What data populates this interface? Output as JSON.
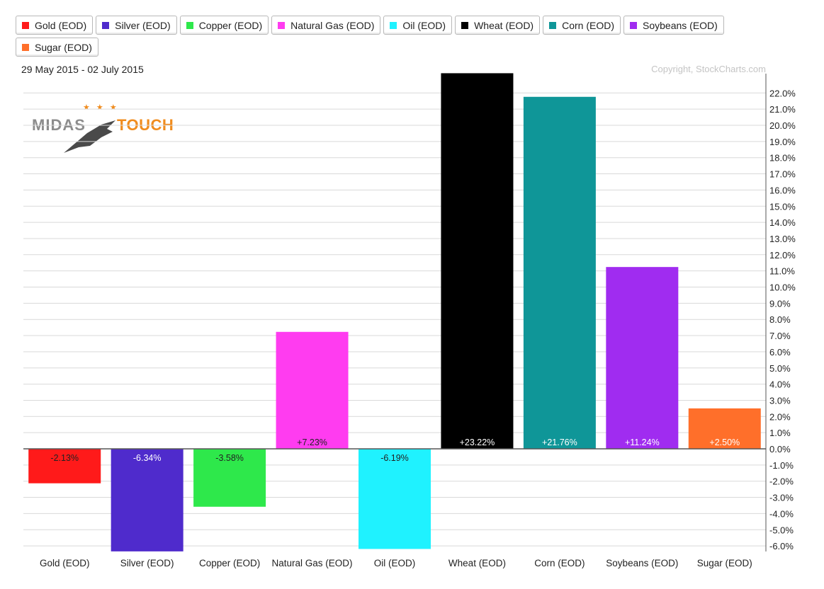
{
  "date_range": "29 May 2015 - 02 July 2015",
  "copyright": "Copyright, StockCharts.com",
  "logo": {
    "word1": "MIDAS",
    "word2": "TOUCH"
  },
  "chart_data": {
    "type": "bar",
    "categories": [
      "Gold (EOD)",
      "Silver (EOD)",
      "Copper (EOD)",
      "Natural Gas (EOD)",
      "Oil (EOD)",
      "Wheat (EOD)",
      "Corn (EOD)",
      "Soybeans (EOD)",
      "Sugar (EOD)"
    ],
    "values": [
      -2.13,
      -6.34,
      -3.58,
      7.23,
      -6.19,
      23.22,
      21.76,
      11.24,
      2.5
    ],
    "value_labels": [
      "-2.13%",
      "-6.34%",
      "-3.58%",
      "+7.23%",
      "-6.19%",
      "+23.22%",
      "+21.76%",
      "+11.24%",
      "+2.50%"
    ],
    "colors": [
      "#ff1a1a",
      "#4f2bcc",
      "#2ee84b",
      "#ff3cf0",
      "#1ff2ff",
      "#000000",
      "#0f9698",
      "#a02cf0",
      "#ff6f2a"
    ],
    "label_colors": [
      "#222222",
      "#ffffff",
      "#222222",
      "#222222",
      "#222222",
      "#ffffff",
      "#ffffff",
      "#ffffff",
      "#ffffff"
    ],
    "ylim": [
      -6.5,
      23
    ],
    "yticks": [
      "22.0%",
      "21.0%",
      "20.0%",
      "19.0%",
      "18.0%",
      "17.0%",
      "16.0%",
      "15.0%",
      "14.0%",
      "13.0%",
      "12.0%",
      "11.0%",
      "10.0%",
      "9.0%",
      "8.0%",
      "7.0%",
      "6.0%",
      "5.0%",
      "4.0%",
      "3.0%",
      "2.0%",
      "1.0%",
      "0.0%",
      "-1.0%",
      "-2.0%",
      "-3.0%",
      "-4.0%",
      "-5.0%",
      "-6.0%"
    ],
    "ytick_values": [
      22,
      21,
      20,
      19,
      18,
      17,
      16,
      15,
      14,
      13,
      12,
      11,
      10,
      9,
      8,
      7,
      6,
      5,
      4,
      3,
      2,
      1,
      0,
      -1,
      -2,
      -3,
      -4,
      -5,
      -6
    ],
    "grid": true,
    "legend_position": "top",
    "yaxis_side": "right"
  }
}
